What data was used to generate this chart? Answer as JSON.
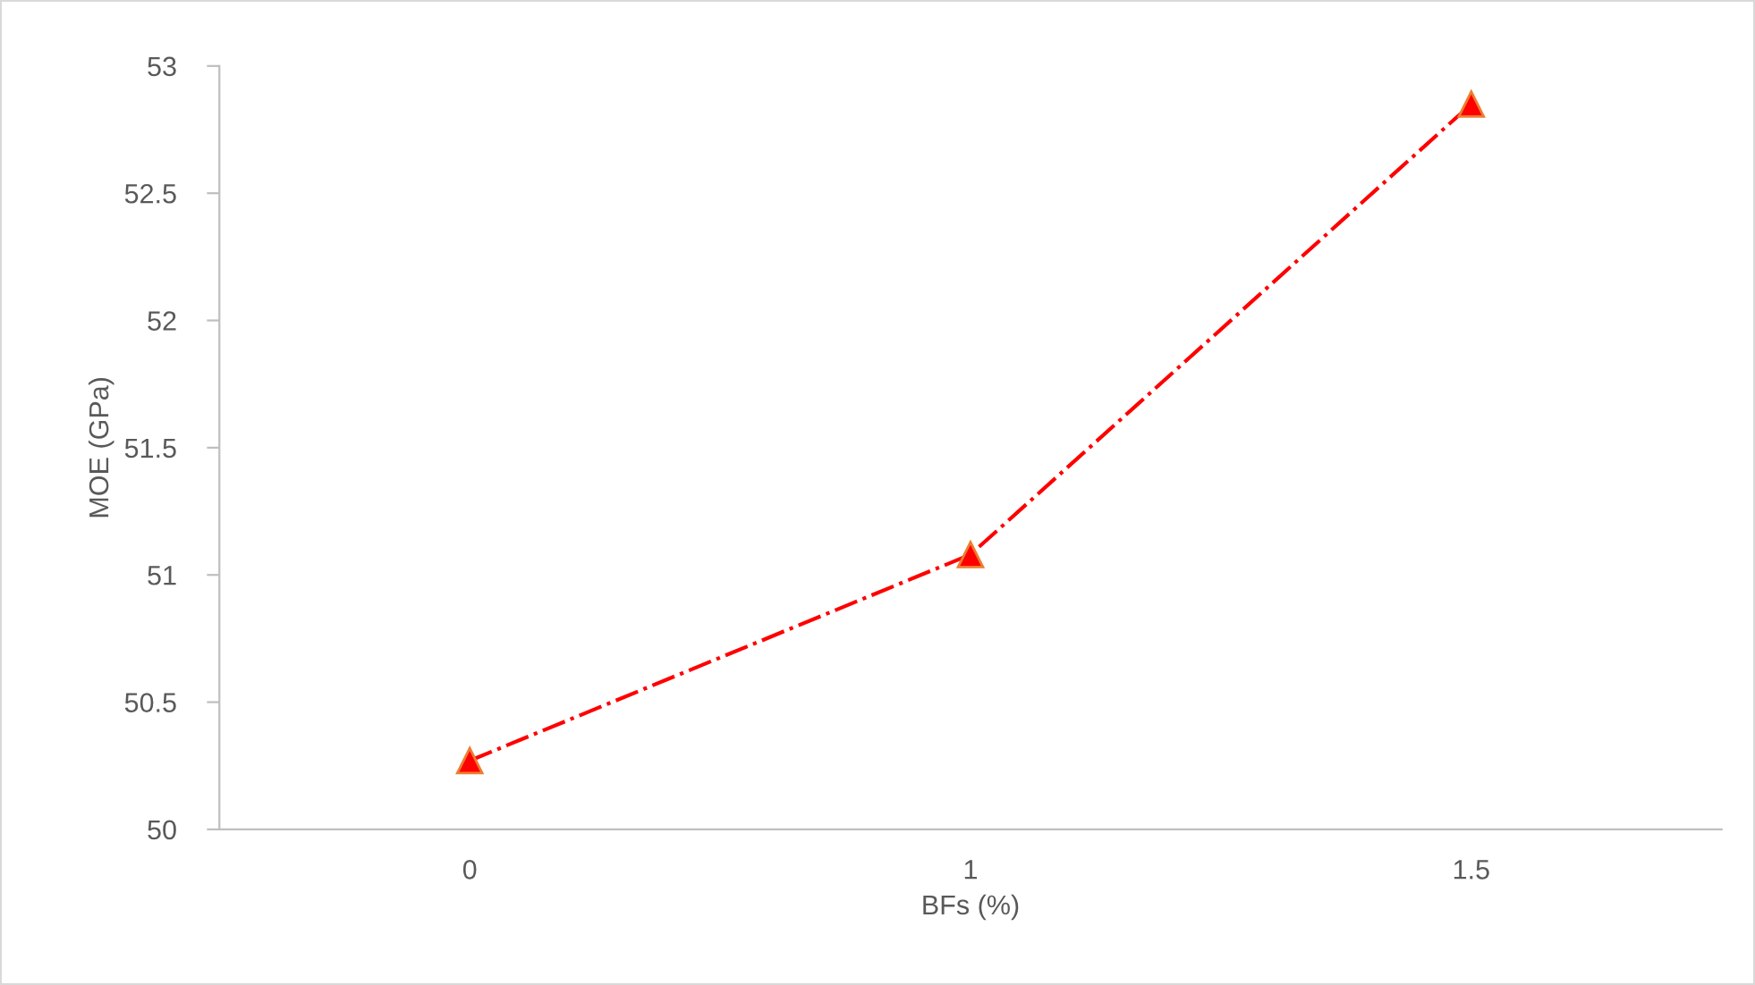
{
  "chart_data": {
    "type": "line",
    "xlabel": "BFs (%)",
    "ylabel": "MOE (GPa)",
    "categories": [
      "0",
      "1",
      "1.5"
    ],
    "series": [
      {
        "color": "#ff0000",
        "values": [
          50.27,
          51.08,
          52.85
        ]
      }
    ],
    "ylim": [
      50,
      53
    ],
    "yticks": [
      50,
      50.5,
      51,
      51.5,
      52,
      52.5,
      53
    ],
    "marker": "triangle",
    "line_style": "dashdot",
    "grid": false,
    "legend": false
  }
}
